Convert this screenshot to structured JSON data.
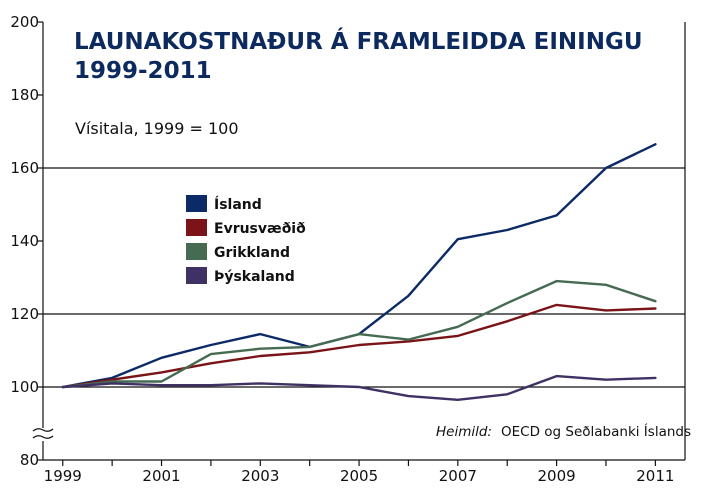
{
  "chart_data": {
    "type": "line",
    "title_line1": "LAUNAKOSTNAÐUR Á FRAMLEIDDA EININGU",
    "title_line2": "1999-2011",
    "subtitle": "Vísitala, 1999 = 100",
    "x": [
      1999,
      2000,
      2001,
      2002,
      2003,
      2004,
      2005,
      2006,
      2007,
      2008,
      2009,
      2010,
      2011
    ],
    "x_tick_labels": [
      "1999",
      "2001",
      "2003",
      "2005",
      "2007",
      "2009",
      "2011"
    ],
    "y_tick_labels": [
      "80",
      "100",
      "120",
      "140",
      "160",
      "180",
      "200"
    ],
    "ylim": [
      80,
      200
    ],
    "xlim": [
      1998.6,
      2011.6
    ],
    "gridlines_y": [
      100,
      120,
      160
    ],
    "axis_break": true,
    "legend_position": "left",
    "series": [
      {
        "name": "Ísland",
        "color": "#0c2a66",
        "values": [
          100,
          102.5,
          108,
          111.5,
          114.5,
          111,
          114.5,
          125,
          140.5,
          143,
          147,
          160,
          166.5
        ]
      },
      {
        "name": "Evrusvæðið",
        "color": "#7a1418",
        "values": [
          100,
          102,
          104,
          106.5,
          108.5,
          109.5,
          111.5,
          112.5,
          114,
          118,
          122.5,
          121,
          121.5
        ]
      },
      {
        "name": "Grikkland",
        "color": "#466a52",
        "values": [
          100,
          101.5,
          101.5,
          109,
          110.5,
          111,
          114.5,
          113,
          116.5,
          123,
          129,
          128,
          123.5
        ]
      },
      {
        "name": "Þýskaland",
        "color": "#3f3163",
        "values": [
          100,
          101,
          100.5,
          100.5,
          101,
          100.5,
          100,
          97.5,
          96.5,
          98,
          103,
          102,
          102.5
        ]
      }
    ],
    "source_label": "Heimild:",
    "source_text": "OECD og Seðlabanki Íslands"
  }
}
